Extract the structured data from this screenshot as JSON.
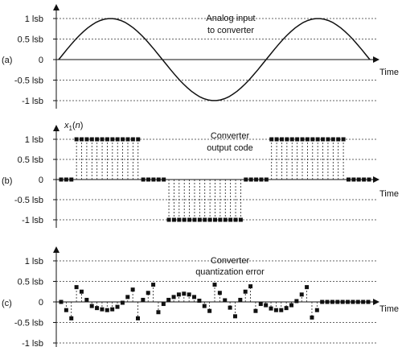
{
  "chart_data": [
    {
      "type": "line",
      "panel_label": "(a)",
      "annotation": [
        "Analog input",
        "to converter"
      ],
      "xlabel": "Time",
      "ylabel": "",
      "yticks": [
        "1 lsb",
        "0.5 lsb",
        "0",
        "-0.5 lsb",
        "-1 lsb"
      ],
      "ylim": [
        -1,
        1
      ],
      "grid": true,
      "series": [
        {
          "x": [
            0,
            0.02,
            0.04,
            0.06,
            0.08,
            0.1,
            0.12,
            0.14,
            0.16,
            0.18,
            0.2,
            0.22,
            0.24,
            0.26,
            0.28,
            0.3,
            0.32,
            0.34,
            0.36,
            0.38,
            0.4,
            0.42,
            0.44,
            0.46,
            0.48,
            0.5,
            0.52,
            0.54,
            0.56,
            0.58,
            0.6,
            0.62,
            0.64,
            0.66,
            0.68,
            0.7,
            0.72,
            0.74,
            0.76,
            0.78,
            0.8,
            0.82,
            0.84,
            0.86,
            0.88,
            0.9,
            0.92,
            0.94,
            0.96,
            0.98,
            1.0,
            1.02,
            1.04,
            1.06,
            1.08,
            1.1,
            1.12,
            1.14,
            1.16,
            1.18,
            1.2,
            1.22,
            1.24,
            1.26,
            1.28,
            1.3,
            1.32,
            1.34,
            1.36,
            1.38,
            1.4,
            1.42,
            1.44,
            1.46,
            1.48,
            1.5
          ],
          "y": [
            0,
            0.125,
            0.249,
            0.368,
            0.482,
            0.588,
            0.685,
            0.771,
            0.844,
            0.905,
            0.951,
            0.982,
            0.998,
            0.998,
            0.982,
            0.951,
            0.905,
            0.844,
            0.771,
            0.685,
            0.588,
            0.482,
            0.368,
            0.249,
            0.125,
            0,
            -0.125,
            -0.249,
            -0.368,
            -0.482,
            -0.588,
            -0.685,
            -0.771,
            -0.844,
            -0.905,
            -0.951,
            -0.982,
            -0.998,
            -0.998,
            -0.982,
            -0.951,
            -0.905,
            -0.844,
            -0.771,
            -0.685,
            -0.588,
            -0.482,
            -0.368,
            -0.249,
            -0.125,
            0,
            0.125,
            0.249,
            0.368,
            0.482,
            0.588,
            0.685,
            0.771,
            0.844,
            0.905,
            0.951,
            0.982,
            0.998,
            0.998,
            0.982,
            0.951,
            0.905,
            0.844,
            0.771,
            0.685,
            0.588,
            0.482,
            0.368,
            0.249,
            0.125,
            0
          ]
        }
      ]
    },
    {
      "type": "scatter",
      "panel_label": "(b)",
      "annotation": [
        "Converter",
        "output code"
      ],
      "ylabel_parts": [
        "x",
        "1",
        "(",
        "n",
        ")"
      ],
      "xlabel": "Time",
      "yticks": [
        "1 lsb",
        "0.5 lsb",
        "0",
        "-0.5 lsb",
        "-1 lsb"
      ],
      "ylim": [
        -1,
        1
      ],
      "grid": true,
      "stems": true,
      "series": [
        {
          "x": [
            0,
            1,
            2,
            3,
            4,
            5,
            6,
            7,
            8,
            9,
            10,
            11,
            12,
            13,
            14,
            15,
            16,
            17,
            18,
            19,
            20,
            21,
            22,
            23,
            24,
            25,
            26,
            27,
            28,
            29,
            30,
            31,
            32,
            33,
            34,
            35,
            36,
            37,
            38,
            39,
            40,
            41,
            42,
            43,
            44,
            45,
            46,
            47,
            48,
            49,
            50,
            51,
            52,
            53,
            54,
            55,
            56,
            57,
            58,
            59,
            60
          ],
          "y": [
            0,
            0,
            0,
            1,
            1,
            1,
            1,
            1,
            1,
            1,
            1,
            1,
            1,
            1,
            1,
            1,
            0,
            0,
            0,
            0,
            0,
            -1,
            -1,
            -1,
            -1,
            -1,
            -1,
            -1,
            -1,
            -1,
            -1,
            -1,
            -1,
            -1,
            -1,
            -1,
            0,
            0,
            0,
            0,
            0,
            1,
            1,
            1,
            1,
            1,
            1,
            1,
            1,
            1,
            1,
            1,
            1,
            1,
            1,
            1,
            0,
            0,
            0,
            0,
            0
          ]
        }
      ]
    },
    {
      "type": "scatter",
      "panel_label": "(c)",
      "annotation": [
        "Converter",
        "quantization error"
      ],
      "xlabel": "Time",
      "yticks": [
        "1 lsb",
        "0.5 lsb",
        "0",
        "-0.5 lsb",
        "-1 lsb"
      ],
      "ylim": [
        -1,
        1
      ],
      "grid": true,
      "stems": true,
      "series": [
        {
          "x": [
            0,
            1,
            2,
            3,
            4,
            5,
            6,
            7,
            8,
            9,
            10,
            11,
            12,
            13,
            14,
            15,
            16,
            17,
            18,
            19,
            20,
            21,
            22,
            23,
            24,
            25,
            26,
            27,
            28,
            29,
            30,
            31,
            32,
            33,
            34,
            35,
            36,
            37,
            38,
            39,
            40,
            41,
            42,
            43,
            44,
            45,
            46,
            47,
            48,
            49,
            50,
            51,
            52,
            53,
            54,
            55,
            56,
            57,
            58,
            59,
            60
          ],
          "y": [
            0,
            -0.2,
            -0.4,
            0.36,
            0.25,
            0.05,
            -0.1,
            -0.15,
            -0.18,
            -0.2,
            -0.18,
            -0.12,
            -0.02,
            0.12,
            0.3,
            -0.4,
            0.05,
            0.22,
            0.42,
            -0.25,
            -0.05,
            0.05,
            0.12,
            0.18,
            0.2,
            0.18,
            0.12,
            0.03,
            -0.1,
            -0.22,
            0.42,
            0.22,
            0.04,
            -0.14,
            -0.35,
            0.05,
            0.25,
            0.38,
            -0.22,
            -0.05,
            -0.08,
            -0.16,
            -0.2,
            -0.2,
            -0.15,
            -0.08,
            0.02,
            0.18,
            0.36,
            -0.38,
            -0.2,
            0,
            0,
            0,
            0,
            0,
            0,
            0,
            0,
            0,
            0
          ]
        }
      ]
    }
  ]
}
